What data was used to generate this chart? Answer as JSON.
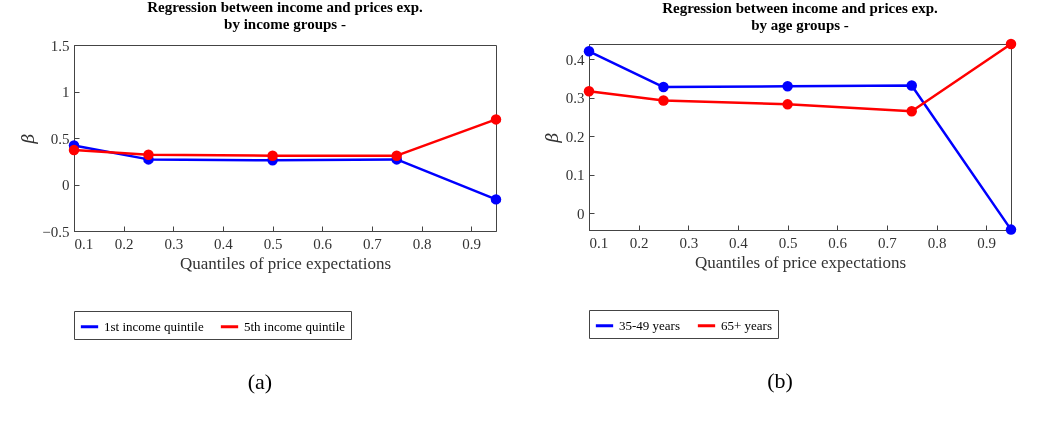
{
  "chart_data": [
    {
      "type": "line",
      "title": "Regression between income and prices exp.",
      "subtitle": "by income groups -",
      "xlabel": "Quantiles of price expectations",
      "ylabel": "β",
      "x": [
        0.1,
        0.25,
        0.5,
        0.75,
        0.95
      ],
      "xlim": [
        0.1,
        0.95
      ],
      "xticks": [
        0.1,
        0.2,
        0.3,
        0.4,
        0.5,
        0.6,
        0.7,
        0.8,
        0.9
      ],
      "ylim": [
        -0.5,
        1.5
      ],
      "yticks": [
        -0.5,
        0,
        0.5,
        1,
        1.5
      ],
      "grid": false,
      "legend": "bottom",
      "marker": "circle",
      "line_style": "solid",
      "annotations": [
        "(a)"
      ],
      "series": [
        {
          "name": "1st income quintile",
          "color": "#0000ff",
          "values": [
            0.42,
            0.27,
            0.26,
            0.27,
            -0.16
          ]
        },
        {
          "name": "5th income quintile",
          "color": "#ff0000",
          "values": [
            0.37,
            0.32,
            0.31,
            0.31,
            0.7
          ]
        }
      ]
    },
    {
      "type": "line",
      "title": "Regression between income and prices exp.",
      "subtitle": "by age groups -",
      "xlabel": "Quantiles of price expectations",
      "ylabel": "β",
      "x": [
        0.1,
        0.25,
        0.5,
        0.75,
        0.95
      ],
      "xlim": [
        0.1,
        0.95
      ],
      "xticks": [
        0.1,
        0.2,
        0.3,
        0.4,
        0.5,
        0.6,
        0.7,
        0.8,
        0.9
      ],
      "ylim": [
        -0.044,
        0.44
      ],
      "yticks": [
        0,
        0.1,
        0.2,
        0.3,
        0.4
      ],
      "grid": false,
      "legend": "bottom",
      "marker": "circle",
      "line_style": "solid",
      "annotations": [
        "(b)"
      ],
      "series": [
        {
          "name": "35-49 years",
          "color": "#0000ff",
          "values": [
            0.421,
            0.328,
            0.33,
            0.332,
            -0.043
          ]
        },
        {
          "name": "65+ years",
          "color": "#ff0000",
          "values": [
            0.317,
            0.293,
            0.283,
            0.265,
            0.44
          ]
        }
      ]
    }
  ]
}
